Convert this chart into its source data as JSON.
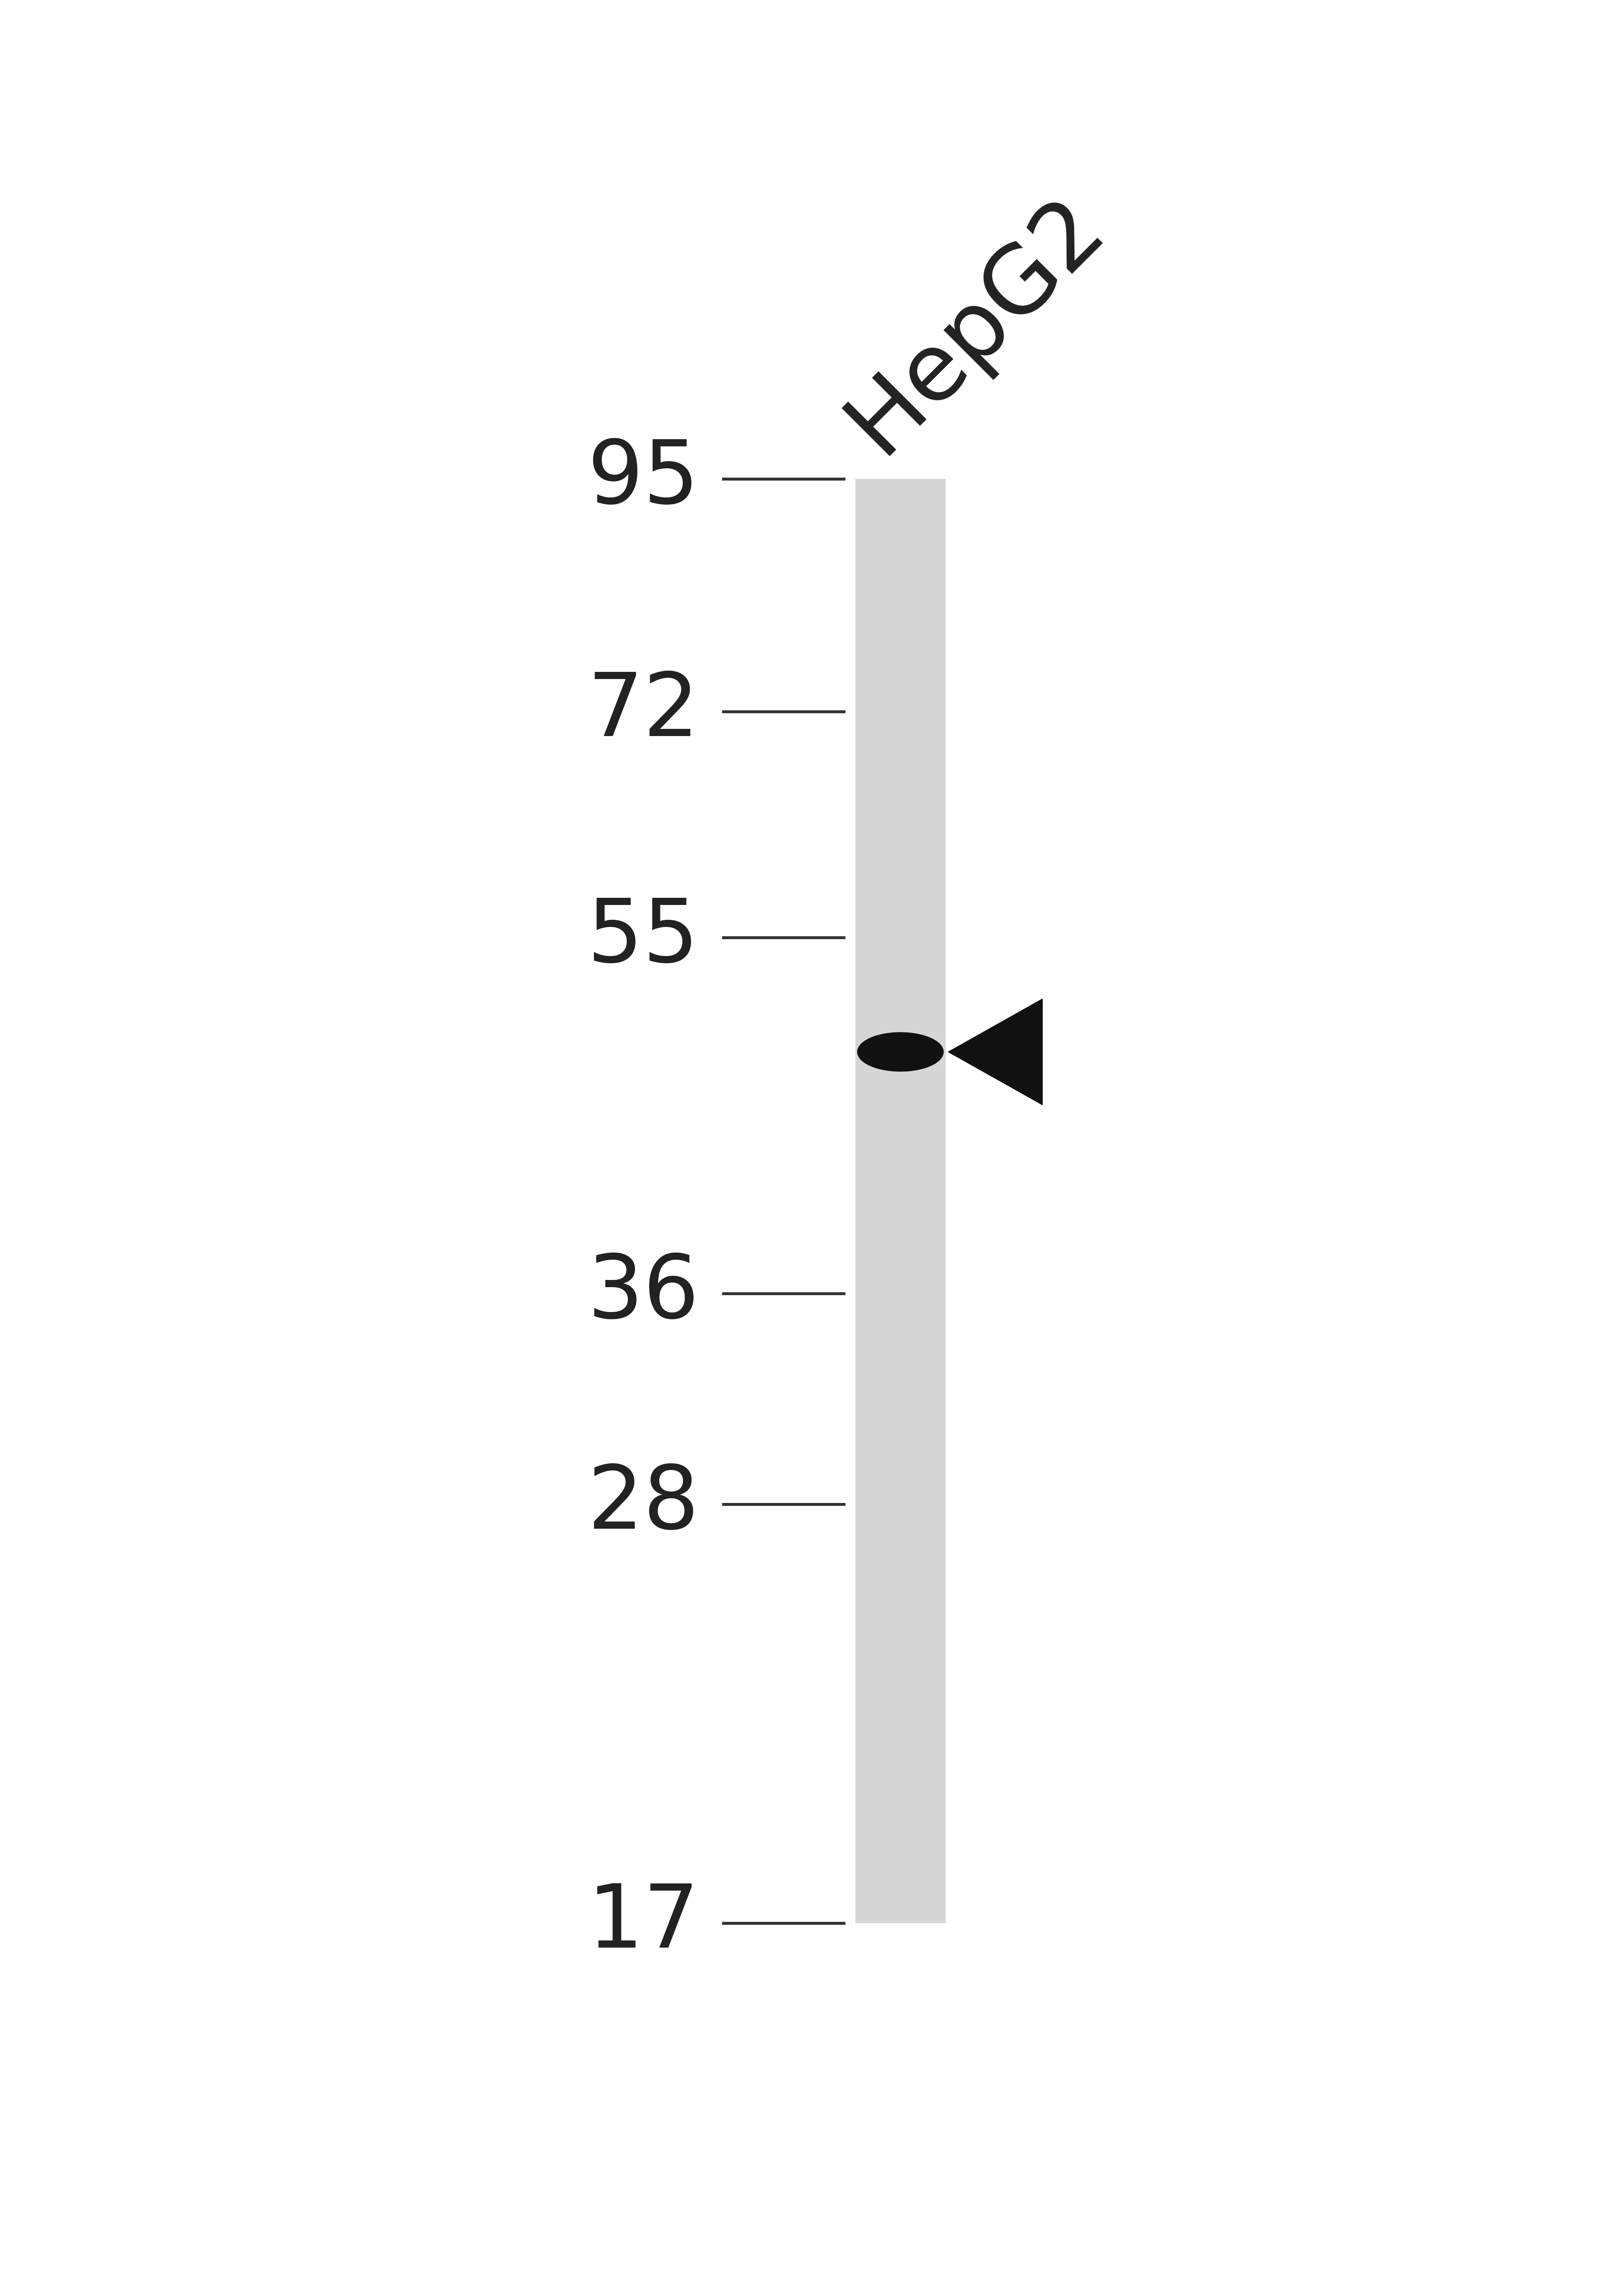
{
  "background_color": "#ffffff",
  "gel_band_color": "#1a1a1a",
  "lane_label": "HepG2",
  "lane_label_rotation": 45,
  "lane_label_fontsize": 160,
  "mw_markers": [
    95,
    72,
    55,
    36,
    28,
    17
  ],
  "mw_fontsize": 150,
  "band_kda": 48,
  "arrow_color": "#111111",
  "band_color": "#111111",
  "gel_gray": 0.84,
  "tick_linewidth": 5,
  "gel_linewidth": 2
}
